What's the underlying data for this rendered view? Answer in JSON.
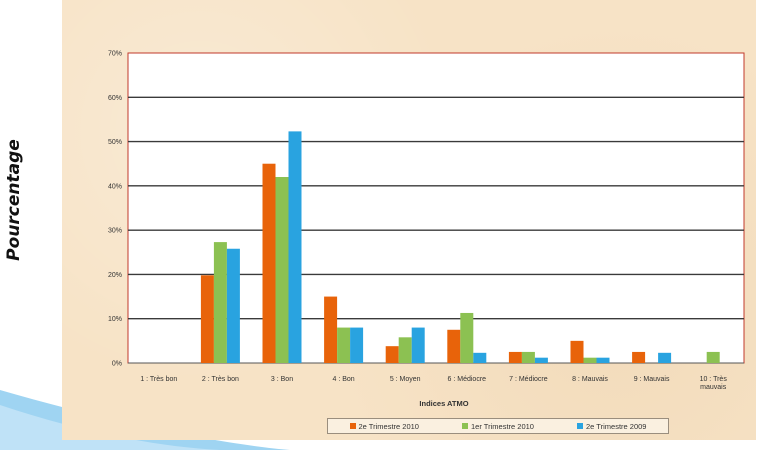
{
  "page": {
    "outer_ylabel": "Pourcentage"
  },
  "chart_data": {
    "type": "bar",
    "title": "",
    "xlabel": "Indices ATMO",
    "ylabel": "Pourcentage",
    "ylim": [
      0,
      70
    ],
    "yticks": [
      "0%",
      "10%",
      "20%",
      "30%",
      "40%",
      "50%",
      "60%",
      "70%"
    ],
    "grid": true,
    "legend_position": "bottom",
    "categories": [
      "1 : Très bon",
      "2 : Très bon",
      "3 : Bon",
      "4 : Bon",
      "5 : Moyen",
      "6 : Médiocre",
      "7 : Médiocre",
      "8 : Mauvais",
      "9 : Mauvais",
      "10 : Très mauvais"
    ],
    "series": [
      {
        "name": "2e Trimestre 2010",
        "color": "#e8630a",
        "values": [
          0,
          19.8,
          45,
          15,
          3.8,
          7.5,
          2.5,
          5,
          2.5,
          0
        ]
      },
      {
        "name": "1er Trimestre 2010",
        "color": "#8cc152",
        "values": [
          0,
          27.3,
          42,
          8,
          5.8,
          11.3,
          2.5,
          1.2,
          0,
          2.5
        ]
      },
      {
        "name": "2e Trimestre 2009",
        "color": "#29a3e0",
        "values": [
          0,
          25.8,
          52.3,
          8,
          8,
          2.3,
          1.2,
          1.2,
          2.3,
          0
        ]
      }
    ]
  }
}
